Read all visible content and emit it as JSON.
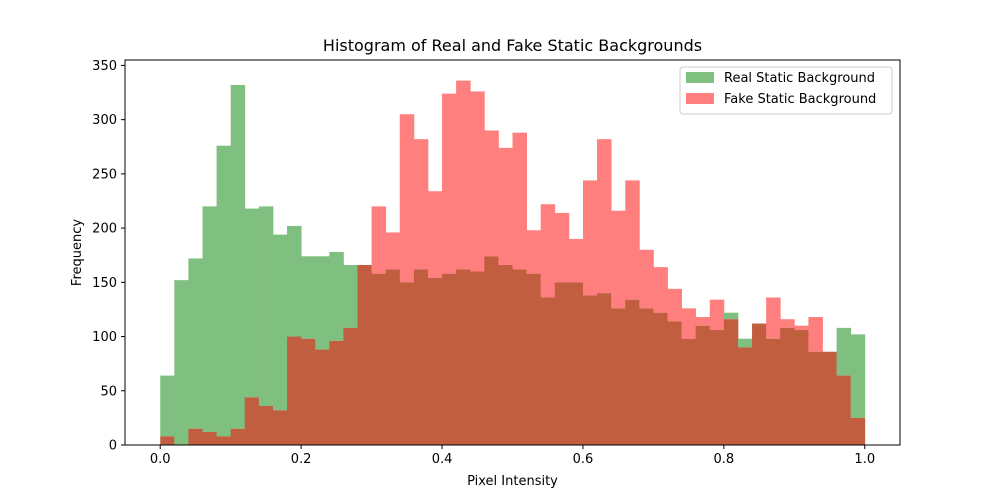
{
  "chart_data": {
    "type": "bar",
    "title": "Histogram of Real and Fake Static Backgrounds",
    "xlabel": "Pixel Intensity",
    "ylabel": "Frequency",
    "xlim": [
      -0.05,
      1.05
    ],
    "ylim": [
      0,
      355
    ],
    "x_ticks": [
      0.0,
      0.2,
      0.4,
      0.6,
      0.8,
      1.0
    ],
    "x_tick_labels": [
      "0.0",
      "0.2",
      "0.4",
      "0.6",
      "0.8",
      "1.0"
    ],
    "y_ticks": [
      0,
      50,
      100,
      150,
      200,
      250,
      300,
      350
    ],
    "y_tick_labels": [
      "0",
      "50",
      "100",
      "150",
      "200",
      "250",
      "300",
      "350"
    ],
    "bin_edges": [
      0.0,
      0.02,
      0.04,
      0.06,
      0.08,
      0.1,
      0.12,
      0.14,
      0.16,
      0.18,
      0.2,
      0.22,
      0.24,
      0.26,
      0.28,
      0.3,
      0.32,
      0.34,
      0.36,
      0.38,
      0.4,
      0.42,
      0.44,
      0.46,
      0.48,
      0.5,
      0.52,
      0.54,
      0.56,
      0.58,
      0.6,
      0.62,
      0.64,
      0.66,
      0.68,
      0.7,
      0.72,
      0.74,
      0.76,
      0.78,
      0.8,
      0.82,
      0.84,
      0.86,
      0.88,
      0.9,
      0.92,
      0.94,
      0.96,
      0.98,
      1.0
    ],
    "legend_position": "top-right",
    "overlap_color": "#c15e40",
    "series": [
      {
        "name": "Real Static Background",
        "color": "#7fbf7f",
        "values": [
          64,
          152,
          172,
          220,
          276,
          332,
          218,
          220,
          194,
          202,
          174,
          174,
          178,
          166,
          166,
          158,
          162,
          150,
          162,
          154,
          158,
          162,
          160,
          174,
          166,
          162,
          158,
          136,
          150,
          150,
          138,
          140,
          126,
          134,
          126,
          122,
          114,
          98,
          110,
          106,
          122,
          98,
          112,
          98,
          108,
          106,
          86,
          86,
          108,
          102
        ]
      },
      {
        "name": "Fake Static Background",
        "color": "#ff7f7f",
        "values": [
          8,
          0,
          15,
          12,
          8,
          15,
          44,
          36,
          32,
          100,
          98,
          88,
          96,
          108,
          166,
          220,
          196,
          305,
          282,
          234,
          324,
          336,
          326,
          290,
          274,
          288,
          198,
          222,
          214,
          190,
          244,
          282,
          216,
          244,
          180,
          164,
          144,
          126,
          118,
          134,
          116,
          90,
          112,
          136,
          116,
          110,
          118,
          86,
          64,
          25
        ]
      }
    ]
  }
}
